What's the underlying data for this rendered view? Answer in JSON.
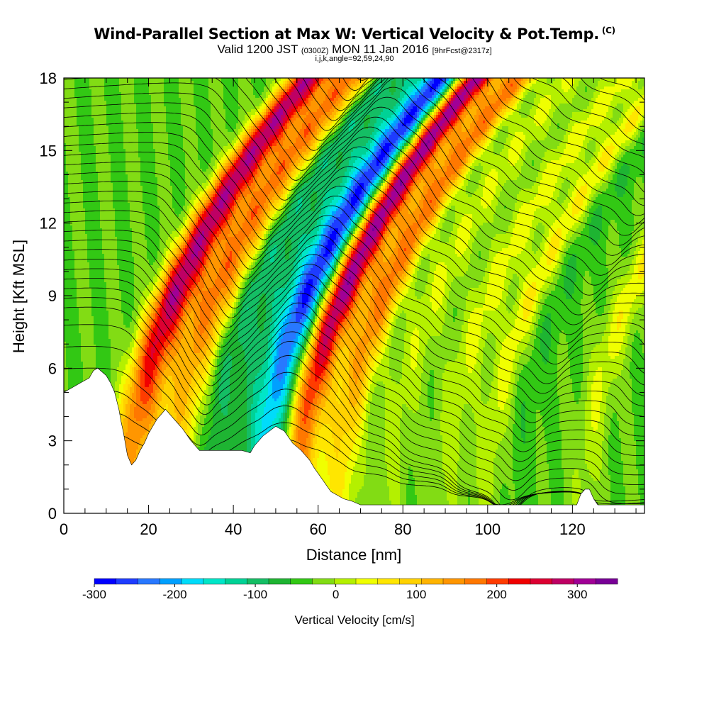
{
  "header": {
    "title": "Wind-Parallel Section at Max W: Vertical Velocity & Pot.Temp.",
    "title_badge": "(C)",
    "valid_pre": "Valid 1200 JST",
    "valid_z": "(0300Z)",
    "valid_post": "MON 11 Jan 2016",
    "forecast": "[9hrFcst@2317z]",
    "indices": "i,j,k,angle=92,59,24,90"
  },
  "colors": {
    "palette": [
      "#0000ff",
      "#1e3cff",
      "#2878ff",
      "#00a0ff",
      "#00dcfa",
      "#00e6c8",
      "#00d296",
      "#14be64",
      "#1eb432",
      "#32c814",
      "#82dc14",
      "#b4f000",
      "#f0ff00",
      "#ffe600",
      "#ffd200",
      "#ffb400",
      "#ff9600",
      "#ff7800",
      "#ff3c00",
      "#f00000",
      "#dc0032",
      "#be0064",
      "#a00096",
      "#780096"
    ]
  },
  "chart_data": {
    "type": "heatmap",
    "xlabel": "Distance [nm]",
    "ylabel": "Height [Kft MSL]",
    "xlim": [
      0,
      137
    ],
    "ylim": [
      0,
      18
    ],
    "xticks": [
      0,
      20,
      40,
      60,
      80,
      100,
      120
    ],
    "yticks": [
      0,
      3,
      6,
      9,
      12,
      15,
      18
    ],
    "colorbar": {
      "label": "Vertical Velocity [cm/s]",
      "range": [
        -300,
        350
      ],
      "ticks": [
        -300,
        -200,
        -100,
        0,
        100,
        200,
        300
      ]
    },
    "vertical_velocity_bands": [
      {
        "x": 15,
        "w": 3.0,
        "v": 290
      },
      {
        "x": 20,
        "w": 3.0,
        "v": 120
      },
      {
        "x": 25,
        "w": 2.2,
        "v": 160
      },
      {
        "x": 29,
        "w": 2.2,
        "v": 100
      },
      {
        "x": 33,
        "w": 2.5,
        "v": -70
      },
      {
        "x": 40,
        "w": 3.5,
        "v": -60
      },
      {
        "x": 47,
        "w": 3.0,
        "v": -240
      },
      {
        "x": 55,
        "w": 2.8,
        "v": 340
      },
      {
        "x": 62,
        "w": 3.0,
        "v": 110
      },
      {
        "x": 66,
        "w": 2.5,
        "v": 150
      },
      {
        "x": 77,
        "w": 3.0,
        "v": 60
      },
      {
        "x": 90,
        "w": 3.0,
        "v": 70
      },
      {
        "x": 100,
        "w": 2.5,
        "v": 90
      },
      {
        "x": 106,
        "w": 3.0,
        "v": -30
      },
      {
        "x": 123,
        "w": 2.5,
        "v": 80
      }
    ],
    "terrain_kft": [
      [
        0,
        5.0
      ],
      [
        2,
        5.2
      ],
      [
        4,
        5.4
      ],
      [
        6,
        5.6
      ],
      [
        7,
        5.9
      ],
      [
        8,
        6.0
      ],
      [
        10,
        5.7
      ],
      [
        11,
        5.4
      ],
      [
        12,
        5.0
      ],
      [
        13,
        4.3
      ],
      [
        13.5,
        3.8
      ],
      [
        14,
        3.4
      ],
      [
        15,
        2.4
      ],
      [
        16,
        2.0
      ],
      [
        17,
        2.2
      ],
      [
        18,
        2.6
      ],
      [
        19,
        2.9
      ],
      [
        20,
        3.3
      ],
      [
        22,
        3.9
      ],
      [
        24,
        4.3
      ],
      [
        26,
        3.9
      ],
      [
        28,
        3.5
      ],
      [
        30,
        3.0
      ],
      [
        32,
        2.6
      ],
      [
        38,
        2.6
      ],
      [
        42,
        2.6
      ],
      [
        44,
        2.5
      ],
      [
        45,
        2.8
      ],
      [
        47,
        3.2
      ],
      [
        50,
        3.6
      ],
      [
        52,
        3.4
      ],
      [
        54,
        2.9
      ],
      [
        56,
        2.6
      ],
      [
        58,
        2.2
      ],
      [
        59,
        1.9
      ],
      [
        61,
        1.4
      ],
      [
        63,
        0.9
      ],
      [
        66,
        0.6
      ],
      [
        68,
        0.5
      ],
      [
        70,
        0.35
      ],
      [
        80,
        0.35
      ],
      [
        100,
        0.35
      ],
      [
        121,
        0.35
      ],
      [
        122,
        0.8
      ],
      [
        123,
        1.0
      ],
      [
        124,
        1.0
      ],
      [
        125,
        0.6
      ],
      [
        126,
        0.35
      ],
      [
        137,
        0.35
      ]
    ],
    "isentropes": {
      "count": 45,
      "bottom_kft": 1.8,
      "spacing_kft": 0.39
    }
  }
}
